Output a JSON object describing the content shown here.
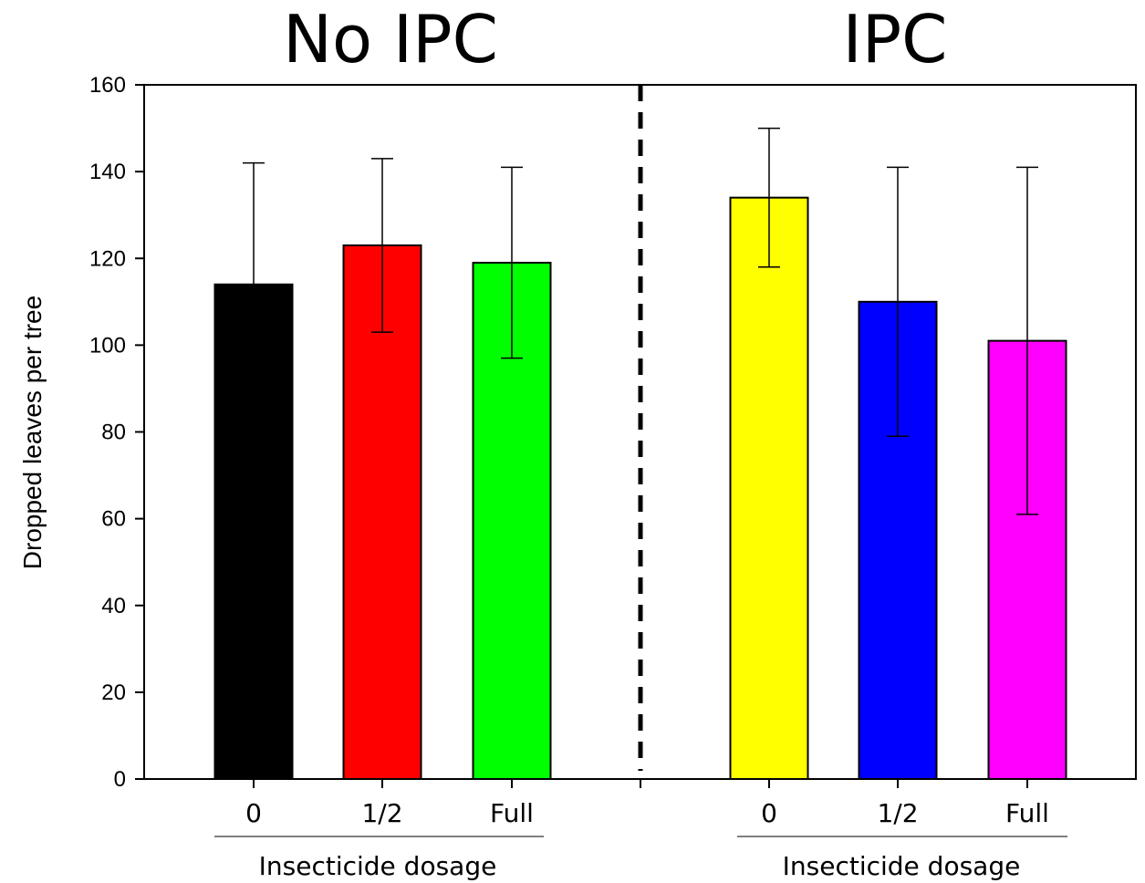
{
  "chart_data": {
    "type": "bar",
    "ylabel": "Dropped leaves per tree",
    "ylim": [
      0,
      160
    ],
    "yticks": [
      0,
      20,
      40,
      60,
      80,
      100,
      120,
      140,
      160
    ],
    "grid": false,
    "groups": [
      {
        "title": "No IPC",
        "xlabel": "Insecticide dosage",
        "categories": [
          "0",
          "1/2",
          "Full"
        ],
        "values": [
          114,
          123,
          119
        ],
        "error_low": [
          114,
          103,
          97
        ],
        "error_high": [
          142,
          143,
          141
        ],
        "colors": [
          "#000000",
          "#ff0000",
          "#00ff00"
        ]
      },
      {
        "title": "IPC",
        "xlabel": "Insecticide dosage",
        "categories": [
          "0",
          "1/2",
          "Full"
        ],
        "values": [
          134,
          110,
          101
        ],
        "error_low": [
          118,
          79,
          61
        ],
        "error_high": [
          150,
          141,
          141
        ],
        "colors": [
          "#ffff00",
          "#0000ff",
          "#ff00ff"
        ]
      }
    ]
  }
}
